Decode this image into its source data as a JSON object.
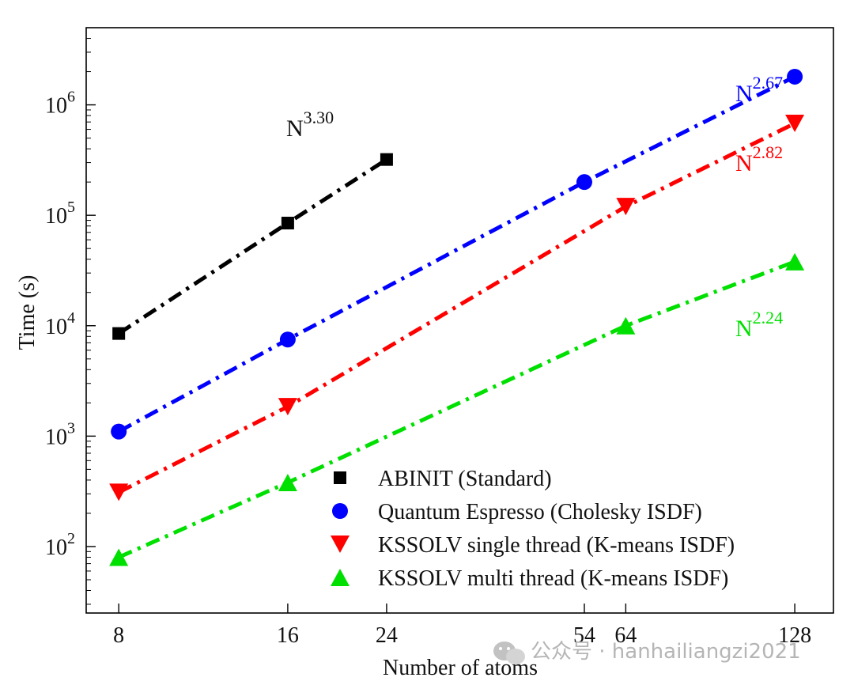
{
  "chart_data": {
    "type": "line",
    "xscale": "log2",
    "yscale": "log10",
    "xlabel": "Number of atoms",
    "ylabel": "Time (s)",
    "xlim": [
      7,
      150
    ],
    "ylim": [
      25,
      5000000
    ],
    "xticks": [
      {
        "value": 8,
        "label": "8"
      },
      {
        "value": 16,
        "label": "16"
      },
      {
        "value": 24,
        "label": "24"
      },
      {
        "value": 54,
        "label": "54"
      },
      {
        "value": 64,
        "label": "64"
      },
      {
        "value": 128,
        "label": "128"
      }
    ],
    "yticks": [
      {
        "value": 100,
        "base": "10",
        "exp": "2"
      },
      {
        "value": 1000,
        "base": "10",
        "exp": "3"
      },
      {
        "value": 10000,
        "base": "10",
        "exp": "4"
      },
      {
        "value": 100000,
        "base": "10",
        "exp": "5"
      },
      {
        "value": 1000000,
        "base": "10",
        "exp": "6"
      }
    ],
    "series": [
      {
        "name": "ABINIT (Standard)",
        "color": "#000000",
        "marker": "square",
        "x": [
          8,
          16,
          24
        ],
        "y": [
          8500,
          85000,
          320000
        ],
        "fit_exponent_base": "N",
        "fit_exponent": "3.30"
      },
      {
        "name": "Quantum Espresso (Cholesky ISDF)",
        "color": "#0000ff",
        "marker": "circle",
        "x": [
          8,
          16,
          54,
          128
        ],
        "y": [
          1100,
          7500,
          200000,
          1800000
        ],
        "fit_exponent_base": "N",
        "fit_exponent": "2.67"
      },
      {
        "name": "KSSOLV single thread (K-means ISDF)",
        "color": "#ff0000",
        "marker": "triangle-down",
        "x": [
          8,
          16,
          64,
          128
        ],
        "y": [
          310,
          1850,
          120000,
          680000
        ],
        "fit_exponent_base": "N",
        "fit_exponent": "2.82"
      },
      {
        "name": "KSSOLV multi thread (K-means ISDF)",
        "color": "#00e000",
        "marker": "triangle-up",
        "x": [
          8,
          16,
          64,
          128
        ],
        "y": [
          80,
          380,
          10000,
          38000
        ],
        "fit_exponent_base": "N",
        "fit_exponent": "2.24"
      }
    ],
    "legend": "bottom-right"
  },
  "watermark": {
    "icon": "wechat-icon",
    "text": "公众号 · hanhailiangzi2021"
  }
}
